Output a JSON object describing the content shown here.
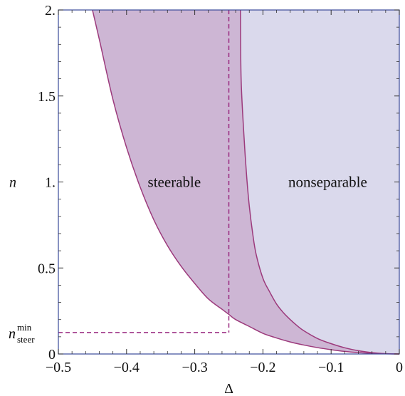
{
  "chart_data": {
    "type": "area",
    "xlabel": "Δ",
    "ylabel": "n",
    "xlim": [
      -0.5,
      0
    ],
    "ylim": [
      0,
      2
    ],
    "x_ticks": [
      {
        "value": -0.5,
        "label": "−0.5"
      },
      {
        "value": -0.4,
        "label": "−0.4"
      },
      {
        "value": -0.3,
        "label": "−0.3"
      },
      {
        "value": -0.2,
        "label": "−0.2"
      },
      {
        "value": -0.1,
        "label": "−0.1"
      },
      {
        "value": 0,
        "label": "0"
      }
    ],
    "y_ticks": [
      {
        "value": 0,
        "label": "0"
      },
      {
        "value": 0.5,
        "label": "0.5"
      },
      {
        "value": 1,
        "label": "1."
      },
      {
        "value": 1.5,
        "label": "1.5"
      },
      {
        "value": 2,
        "label": "2."
      }
    ],
    "special_y_tick": {
      "value": 0.125,
      "label_main": "n",
      "label_sup": "min",
      "label_sub": "steer"
    },
    "regions": [
      {
        "label": "steerable",
        "fill": "#cdb6d4",
        "label_at": {
          "x": -0.33,
          "y": 1.0
        },
        "boundary": {
          "x": [
            -0.45,
            -0.44,
            -0.42,
            -0.4,
            -0.38,
            -0.36,
            -0.34,
            -0.32,
            -0.3,
            -0.28,
            -0.26,
            -0.25,
            -0.24,
            -0.22,
            -0.2,
            -0.18,
            -0.16,
            -0.14,
            -0.12,
            -0.1,
            -0.08,
            -0.06,
            -0.04,
            -0.02,
            0
          ],
          "y": [
            2.0,
            1.83,
            1.48,
            1.2,
            0.97,
            0.78,
            0.63,
            0.51,
            0.41,
            0.32,
            0.26,
            0.23,
            0.2,
            0.16,
            0.12,
            0.093,
            0.07,
            0.052,
            0.037,
            0.025,
            0.015,
            0.008,
            0.004,
            0.001,
            0
          ]
        }
      },
      {
        "label": "nonseparable",
        "fill": "#dad9ec",
        "label_at": {
          "x": -0.105,
          "y": 1.0
        },
        "boundary": {
          "x": [
            -0.233,
            -0.232,
            -0.228,
            -0.224,
            -0.22,
            -0.215,
            -0.21,
            -0.2,
            -0.19,
            -0.18,
            -0.17,
            -0.16,
            -0.15,
            -0.14,
            -0.12,
            -0.1,
            -0.08,
            -0.06,
            -0.04,
            -0.02,
            0
          ],
          "y": [
            2.0,
            1.6,
            1.28,
            1.04,
            0.86,
            0.7,
            0.58,
            0.44,
            0.36,
            0.29,
            0.24,
            0.2,
            0.165,
            0.135,
            0.09,
            0.06,
            0.036,
            0.019,
            0.008,
            0.002,
            0
          ]
        }
      }
    ],
    "curve_color": "#9c3a7c",
    "frame_color": "#3a4a9a",
    "reference_lines": {
      "color": "#9a2a80",
      "x": -0.25,
      "y": 0.125
    }
  }
}
